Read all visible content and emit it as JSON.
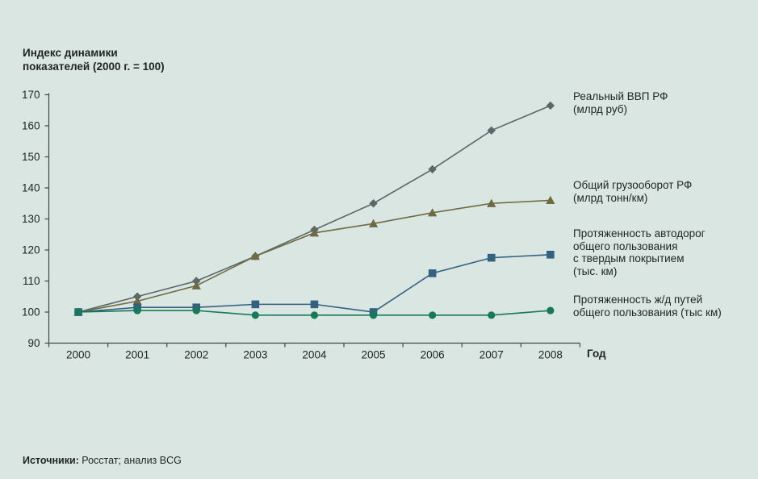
{
  "title": {
    "line1": "Индекс динамики",
    "line2": "показателей (2000 г. = 100)"
  },
  "axes": {
    "x_label": "Год",
    "y_ticks": [
      90,
      100,
      110,
      120,
      130,
      140,
      150,
      160,
      170
    ],
    "x_ticks": [
      2000,
      2001,
      2002,
      2003,
      2004,
      2005,
      2006,
      2007,
      2008
    ]
  },
  "source": {
    "label": "Источники:",
    "value": "Росстат; анализ BCG"
  },
  "colors": {
    "background": "#d9e6e2",
    "axis": "#3f4747",
    "gdp": "#5c6767",
    "freight": "#6e6a41",
    "roads": "#336180",
    "rail": "#17795a"
  },
  "chart_data": {
    "type": "line",
    "x": [
      2000,
      2001,
      2002,
      2003,
      2004,
      2005,
      2006,
      2007,
      2008
    ],
    "xlabel": "Год",
    "ylabel": "Индекс динамики показателей (2000 г. = 100)",
    "ylim": [
      90,
      170
    ],
    "grid": false,
    "legend_position": "right",
    "series": [
      {
        "name": "Реальный ВВП РФ (млрд руб)",
        "label_lines": [
          "Реальный ВВП РФ",
          "(млрд руб)"
        ],
        "marker": "diamond",
        "color": "#5c6767",
        "values": [
          100,
          105,
          110,
          118,
          126.5,
          135,
          146,
          158.5,
          166.5
        ]
      },
      {
        "name": "Общий грузооборот РФ (млрд тонн/км)",
        "label_lines": [
          "Общий грузооборот РФ",
          "(млрд тонн/км)"
        ],
        "marker": "triangle",
        "color": "#6e6a41",
        "values": [
          100,
          103.5,
          108.5,
          118,
          125.5,
          128.5,
          132,
          135,
          136
        ]
      },
      {
        "name": "Протяженность автодорог общего пользования с твердым покрытием (тыс. км)",
        "label_lines": [
          "Протяженность автодорог",
          "общего пользования",
          "с твердым покрытием",
          "(тыс. км)"
        ],
        "marker": "square",
        "color": "#336180",
        "values": [
          100,
          101.5,
          101.5,
          102.5,
          102.5,
          100,
          112.5,
          117.5,
          118.5
        ]
      },
      {
        "name": "Протяженность ж/д путей общего пользования (тыс км)",
        "label_lines": [
          "Протяженность ж/д путей",
          "общего пользования (тыс км)"
        ],
        "marker": "circle",
        "color": "#17795a",
        "values": [
          100,
          100.5,
          100.5,
          99,
          99,
          99,
          99,
          99,
          100.5
        ]
      }
    ]
  }
}
